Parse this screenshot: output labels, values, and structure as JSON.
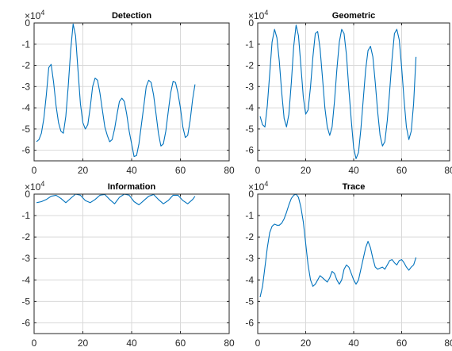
{
  "chart_data": [
    {
      "type": "line",
      "title": "Detection",
      "y_multiplier_base": "×10",
      "y_multiplier_exp": "4",
      "xlim": [
        0,
        80
      ],
      "ylim": [
        -6.5,
        0
      ],
      "xticks": [
        0,
        20,
        40,
        60,
        80
      ],
      "yticks": [
        0,
        -1,
        -2,
        -3,
        -4,
        -5,
        -6
      ],
      "grid": true,
      "color": "#0072BD",
      "x": [
        1,
        2,
        3,
        4,
        5,
        6,
        7,
        8,
        9,
        10,
        11,
        12,
        13,
        14,
        15,
        16,
        17,
        18,
        19,
        20,
        21,
        22,
        23,
        24,
        25,
        26,
        27,
        28,
        29,
        30,
        31,
        32,
        33,
        34,
        35,
        36,
        37,
        38,
        39,
        40,
        41,
        42,
        43,
        44,
        45,
        46,
        47,
        48,
        49,
        50,
        51,
        52,
        53,
        54,
        55,
        56,
        57,
        58,
        59,
        60,
        61,
        62,
        63,
        64,
        65,
        66
      ],
      "y": [
        -5.6,
        -5.5,
        -5.2,
        -4.5,
        -3.4,
        -2.1,
        -1.95,
        -2.8,
        -3.9,
        -4.7,
        -5.1,
        -5.2,
        -4.4,
        -3.0,
        -1.3,
        -0.05,
        -0.6,
        -2.2,
        -3.8,
        -4.7,
        -5.0,
        -4.8,
        -4.0,
        -3.0,
        -2.6,
        -2.7,
        -3.3,
        -4.1,
        -4.9,
        -5.3,
        -5.6,
        -5.5,
        -5.0,
        -4.3,
        -3.7,
        -3.55,
        -3.7,
        -4.3,
        -5.1,
        -5.7,
        -6.3,
        -6.25,
        -5.7,
        -4.8,
        -3.9,
        -3.0,
        -2.7,
        -2.8,
        -3.4,
        -4.3,
        -5.2,
        -5.8,
        -5.7,
        -5.1,
        -4.2,
        -3.3,
        -2.75,
        -2.8,
        -3.3,
        -4.0,
        -4.9,
        -5.4,
        -5.3,
        -4.6,
        -3.6,
        -2.9
      ]
    },
    {
      "type": "line",
      "title": "Geometric",
      "y_multiplier_base": "×10",
      "y_multiplier_exp": "4",
      "xlim": [
        0,
        80
      ],
      "ylim": [
        -6.5,
        0
      ],
      "xticks": [
        0,
        20,
        40,
        60,
        80
      ],
      "yticks": [
        0,
        -1,
        -2,
        -3,
        -4,
        -5,
        -6
      ],
      "grid": true,
      "color": "#0072BD",
      "x": [
        1,
        2,
        3,
        4,
        5,
        6,
        7,
        8,
        9,
        10,
        11,
        12,
        13,
        14,
        15,
        16,
        17,
        18,
        19,
        20,
        21,
        22,
        23,
        24,
        25,
        26,
        27,
        28,
        29,
        30,
        31,
        32,
        33,
        34,
        35,
        36,
        37,
        38,
        39,
        40,
        41,
        42,
        43,
        44,
        45,
        46,
        47,
        48,
        49,
        50,
        51,
        52,
        53,
        54,
        55,
        56,
        57,
        58,
        59,
        60,
        61,
        62,
        63,
        64,
        65,
        66
      ],
      "y": [
        -4.4,
        -4.8,
        -4.9,
        -3.9,
        -2.4,
        -0.9,
        -0.3,
        -0.7,
        -1.8,
        -3.3,
        -4.5,
        -4.9,
        -4.3,
        -2.8,
        -1.1,
        -0.1,
        -0.6,
        -2.0,
        -3.5,
        -4.3,
        -4.1,
        -3.0,
        -1.6,
        -0.5,
        -0.4,
        -1.2,
        -2.6,
        -4.0,
        -4.9,
        -5.3,
        -4.9,
        -3.7,
        -2.2,
        -0.9,
        -0.3,
        -0.5,
        -1.5,
        -3.1,
        -4.6,
        -5.9,
        -6.4,
        -6.1,
        -5.0,
        -3.6,
        -2.2,
        -1.3,
        -1.1,
        -1.6,
        -2.8,
        -4.2,
        -5.3,
        -5.8,
        -5.6,
        -4.6,
        -3.2,
        -1.7,
        -0.5,
        -0.3,
        -0.8,
        -2.1,
        -3.6,
        -4.9,
        -5.5,
        -5.1,
        -3.8,
        -1.6
      ]
    },
    {
      "type": "line",
      "title": "Information",
      "y_multiplier_base": "×10",
      "y_multiplier_exp": "4",
      "xlim": [
        0,
        80
      ],
      "ylim": [
        -6.5,
        0
      ],
      "xticks": [
        0,
        20,
        40,
        60,
        80
      ],
      "yticks": [
        0,
        -1,
        -2,
        -3,
        -4,
        -5,
        -6
      ],
      "grid": true,
      "color": "#0072BD",
      "x": [
        1,
        3,
        5,
        7,
        9,
        11,
        13,
        15,
        17,
        19,
        21,
        23,
        25,
        27,
        29,
        31,
        33,
        35,
        37,
        39,
        41,
        43,
        45,
        47,
        49,
        51,
        53,
        55,
        57,
        59,
        61,
        63,
        65,
        66
      ],
      "y": [
        -0.4,
        -0.35,
        -0.25,
        -0.1,
        -0.05,
        -0.2,
        -0.4,
        -0.2,
        0,
        -0.05,
        -0.3,
        -0.4,
        -0.25,
        -0.05,
        -0.02,
        -0.25,
        -0.45,
        -0.15,
        0,
        -0.05,
        -0.35,
        -0.5,
        -0.3,
        -0.1,
        -0.02,
        -0.25,
        -0.45,
        -0.3,
        -0.05,
        -0.05,
        -0.3,
        -0.45,
        -0.25,
        -0.1
      ]
    },
    {
      "type": "line",
      "title": "Trace",
      "y_multiplier_base": "×10",
      "y_multiplier_exp": "4",
      "xlim": [
        0,
        80
      ],
      "ylim": [
        -6.5,
        0
      ],
      "xticks": [
        0,
        20,
        40,
        60,
        80
      ],
      "yticks": [
        0,
        -1,
        -2,
        -3,
        -4,
        -5,
        -6
      ],
      "grid": true,
      "color": "#0072BD",
      "x": [
        1,
        2,
        3,
        4,
        5,
        6,
        7,
        8,
        9,
        10,
        11,
        12,
        13,
        14,
        15,
        16,
        17,
        18,
        19,
        20,
        21,
        22,
        23,
        24,
        25,
        26,
        27,
        28,
        29,
        30,
        31,
        32,
        33,
        34,
        35,
        36,
        37,
        38,
        39,
        40,
        41,
        42,
        43,
        44,
        45,
        46,
        47,
        48,
        49,
        50,
        51,
        52,
        53,
        54,
        55,
        56,
        57,
        58,
        59,
        60,
        61,
        62,
        63,
        64,
        65,
        66
      ],
      "y": [
        -4.8,
        -4.3,
        -3.4,
        -2.5,
        -1.8,
        -1.5,
        -1.4,
        -1.45,
        -1.45,
        -1.35,
        -1.15,
        -0.85,
        -0.5,
        -0.2,
        -0.05,
        0,
        -0.15,
        -0.6,
        -1.3,
        -2.3,
        -3.3,
        -4.0,
        -4.3,
        -4.2,
        -4.0,
        -3.8,
        -3.9,
        -4.0,
        -4.1,
        -3.9,
        -3.6,
        -3.7,
        -4.0,
        -4.2,
        -4.0,
        -3.5,
        -3.3,
        -3.4,
        -3.7,
        -4.0,
        -4.2,
        -4.0,
        -3.5,
        -3.0,
        -2.5,
        -2.2,
        -2.5,
        -3.0,
        -3.4,
        -3.5,
        -3.45,
        -3.4,
        -3.5,
        -3.3,
        -3.1,
        -3.05,
        -3.2,
        -3.3,
        -3.1,
        -3.05,
        -3.2,
        -3.4,
        -3.55,
        -3.4,
        -3.3,
        -2.95
      ]
    }
  ]
}
